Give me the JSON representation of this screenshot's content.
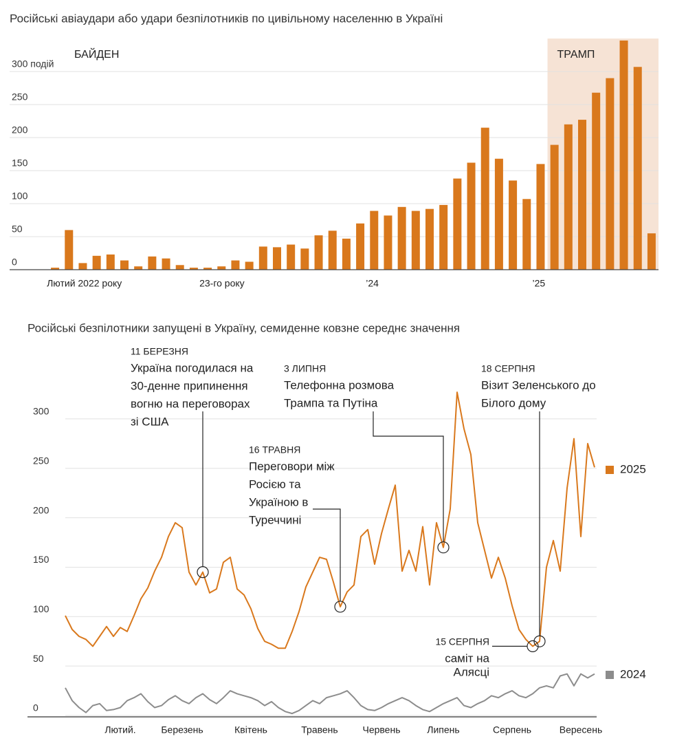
{
  "chart_data": [
    {
      "type": "bar",
      "title": "Російські авіаудари або удари безпілотників по цивільному населенню в Україні",
      "annotations": [
        "БАЙДЕН",
        "ТРАМП"
      ],
      "categories": [
        "Лютий 2022 року",
        null,
        null,
        null,
        null,
        null,
        null,
        null,
        null,
        null,
        null,
        "23-го року",
        null,
        null,
        null,
        null,
        null,
        null,
        null,
        null,
        null,
        null,
        null,
        "’24",
        null,
        null,
        null,
        null,
        null,
        null,
        null,
        null,
        null,
        null,
        null,
        "’25",
        null,
        null,
        null,
        null,
        null,
        null,
        null,
        null
      ],
      "values": [
        3,
        60,
        10,
        21,
        23,
        14,
        5,
        20,
        17,
        7,
        3,
        3,
        5,
        14,
        12,
        35,
        34,
        38,
        32,
        52,
        59,
        47,
        70,
        89,
        82,
        95,
        89,
        92,
        98,
        138,
        162,
        215,
        168,
        135,
        107,
        160,
        189,
        220,
        227,
        268,
        290,
        347,
        307,
        55
      ],
      "color": "#d9781c",
      "ylim": [
        0,
        350
      ],
      "yticks": [
        0,
        50,
        100,
        150,
        200,
        250,
        {
          "value": 300,
          "label": "300 подій"
        }
      ],
      "grid": true
    },
    {
      "type": "line",
      "title": "Російські безпілотники запущені в Україну, семиденне ковзне середнє значення",
      "categories": [
        null,
        null,
        null,
        null,
        null,
        null,
        null,
        null,
        "Лютий.",
        null,
        null,
        null,
        null,
        null,
        null,
        null,
        null,
        "Березень",
        null,
        null,
        null,
        null,
        null,
        null,
        null,
        null,
        null,
        "Квітень",
        null,
        null,
        null,
        null,
        null,
        null,
        null,
        null,
        null,
        "Травень",
        null,
        null,
        null,
        null,
        null,
        null,
        null,
        null,
        "Червень",
        null,
        null,
        null,
        null,
        null,
        null,
        null,
        null,
        "Липень",
        null,
        null,
        null,
        null,
        null,
        null,
        null,
        null,
        null,
        "Серпень",
        null,
        null,
        null,
        null,
        null,
        null,
        null,
        null,
        null,
        "Вересень",
        null,
        null
      ],
      "series": [
        {
          "name": "2025",
          "color": "#d9781c",
          "values": [
            101,
            87,
            80,
            77,
            70,
            80,
            90,
            80,
            89,
            85,
            101,
            118,
            129,
            146,
            160,
            181,
            195,
            190,
            145,
            132,
            145,
            124,
            128,
            155,
            160,
            128,
            122,
            108,
            88,
            75,
            72,
            68,
            68,
            85,
            105,
            130,
            145,
            160,
            158,
            135,
            110,
            125,
            132,
            181,
            188,
            153,
            184,
            209,
            233,
            146,
            167,
            146,
            191,
            132,
            195,
            170,
            209,
            327,
            290,
            264,
            195,
            167,
            139,
            160,
            139,
            111,
            87,
            77,
            70,
            75,
            150,
            177,
            146,
            230,
            280,
            181,
            275,
            251
          ]
        },
        {
          "name": "2024",
          "color": "#8c8c8c",
          "values": [
            28,
            15,
            8,
            3,
            10,
            12,
            5,
            6,
            8,
            15,
            18,
            22,
            14,
            8,
            10,
            16,
            20,
            15,
            12,
            18,
            22,
            16,
            12,
            18,
            25,
            22,
            20,
            18,
            15,
            10,
            14,
            8,
            4,
            2,
            5,
            10,
            15,
            12,
            18,
            20,
            22,
            25,
            18,
            10,
            6,
            5,
            8,
            12,
            15,
            18,
            15,
            10,
            6,
            4,
            8,
            12,
            15,
            18,
            10,
            8,
            12,
            15,
            20,
            18,
            22,
            25,
            20,
            18,
            22,
            28,
            30,
            28,
            40,
            42,
            30,
            42,
            38,
            42
          ]
        }
      ],
      "ylim": [
        0,
        330
      ],
      "yticks": [
        0,
        50,
        100,
        150,
        200,
        250,
        300
      ],
      "grid": true,
      "annotations": [
        {
          "date": "11 БЕРЕЗНЯ",
          "lines": [
            "Україна погодилася на",
            "30-денне припинення",
            "вогню на переговорах",
            "зі США"
          ]
        },
        {
          "date": "16 ТРАВНЯ",
          "lines": [
            "Переговори між",
            "Росією та",
            "Україною в",
            "Туреччині"
          ]
        },
        {
          "date": "3 ЛИПНЯ",
          "lines": [
            "Телефонна розмова",
            "Трампа та Путіна"
          ]
        },
        {
          "date": "15 СЕРПНЯ",
          "lines": [
            "саміт на",
            "Алясці"
          ]
        },
        {
          "date": "18 СЕРПНЯ",
          "lines": [
            "Візит Зеленського до",
            "Білого дому"
          ]
        }
      ]
    }
  ]
}
